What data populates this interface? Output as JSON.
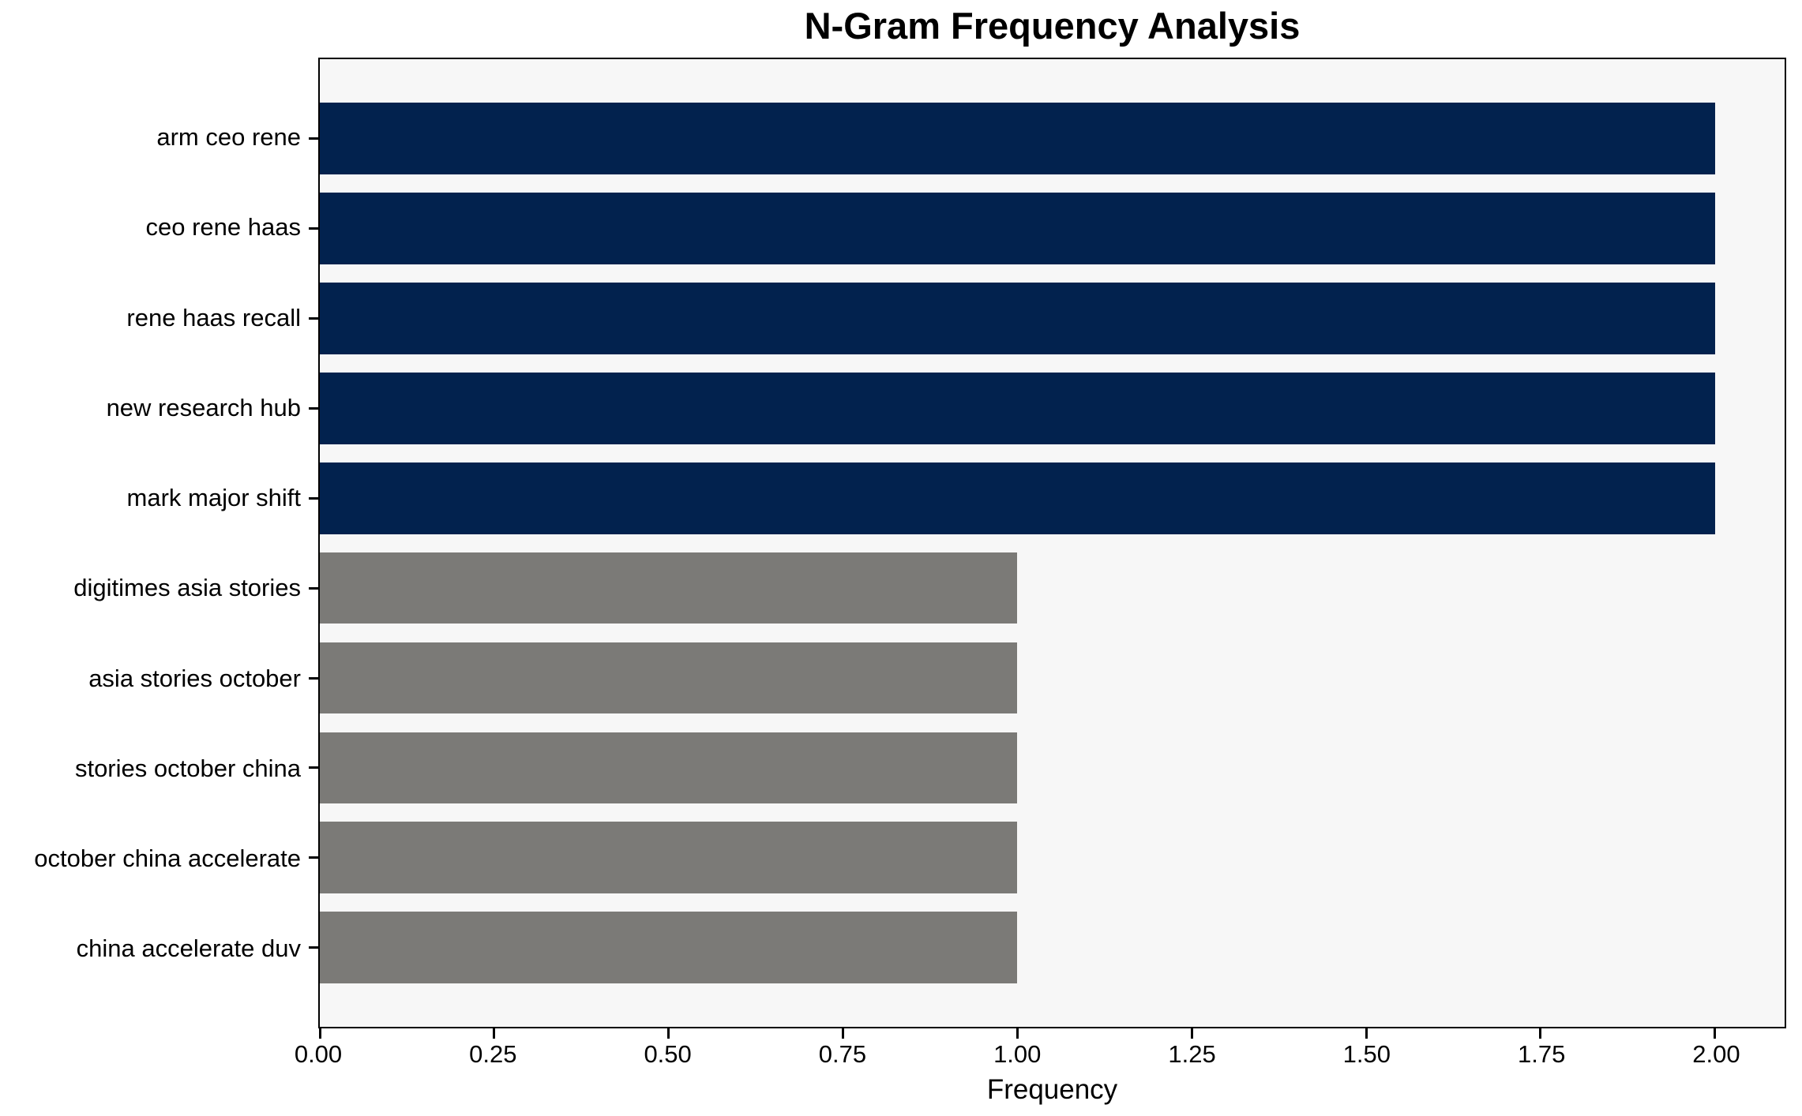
{
  "chart_data": {
    "type": "bar",
    "orientation": "horizontal",
    "title": "N-Gram Frequency Analysis",
    "xlabel": "Frequency",
    "ylabel": "",
    "categories": [
      "arm ceo rene",
      "ceo rene haas",
      "rene haas recall",
      "new research hub",
      "mark major shift",
      "digitimes asia stories",
      "asia stories october",
      "stories october china",
      "october china accelerate",
      "china accelerate duv"
    ],
    "values": [
      2,
      2,
      2,
      2,
      2,
      1,
      1,
      1,
      1,
      1
    ],
    "bar_colors": [
      "#02224e",
      "#02224e",
      "#02224e",
      "#02224e",
      "#02224e",
      "#7b7a77",
      "#7b7a77",
      "#7b7a77",
      "#7b7a77",
      "#7b7a77"
    ],
    "colors": {
      "high_freq_bar": "#02224e",
      "low_freq_bar": "#7b7a77",
      "plot_background": "#f7f7f7",
      "figure_background": "#ffffff",
      "spine": "#000000"
    },
    "xlim": [
      0,
      2.1
    ],
    "xticks": [
      {
        "value": 0.0,
        "label": "0.00"
      },
      {
        "value": 0.25,
        "label": "0.25"
      },
      {
        "value": 0.5,
        "label": "0.50"
      },
      {
        "value": 0.75,
        "label": "0.75"
      },
      {
        "value": 1.0,
        "label": "1.00"
      },
      {
        "value": 1.25,
        "label": "1.25"
      },
      {
        "value": 1.5,
        "label": "1.50"
      },
      {
        "value": 1.75,
        "label": "1.75"
      },
      {
        "value": 2.0,
        "label": "2.00"
      }
    ],
    "grid": false,
    "legend": null
  }
}
